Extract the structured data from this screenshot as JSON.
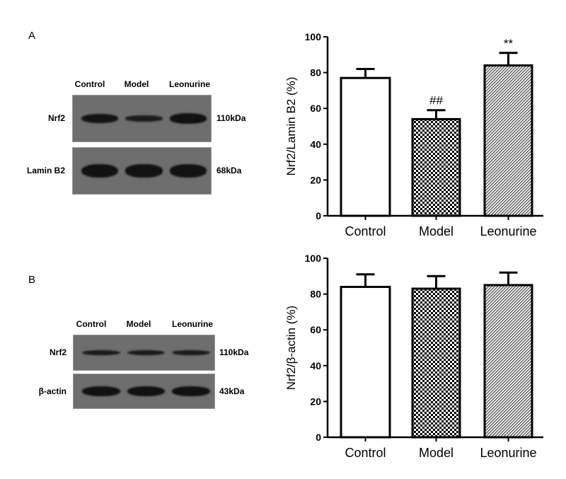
{
  "panels": [
    {
      "letter": "A",
      "lanes": [
        "Control",
        "Model",
        "Leonurine"
      ],
      "blots": [
        {
          "label": "Nrf2",
          "size": "110kDa",
          "band_intensity": [
            0.9,
            0.6,
            1.0
          ]
        },
        {
          "label": "Lamin B2",
          "size": "68kDa",
          "band_intensity": [
            1.0,
            0.95,
            0.95
          ]
        }
      ]
    },
    {
      "letter": "B",
      "lanes": [
        "Control",
        "Model",
        "Leonurine"
      ],
      "blots": [
        {
          "label": "Nrf2",
          "size": "110kDa",
          "band_intensity": [
            0.7,
            0.7,
            0.7
          ]
        },
        {
          "label": "β-actin",
          "size": "43kDa",
          "band_intensity": [
            1.0,
            1.0,
            1.0
          ]
        }
      ]
    }
  ],
  "chart_data": [
    {
      "type": "bar",
      "categories": [
        "Control",
        "Model",
        "Leonurine"
      ],
      "values": [
        77,
        54,
        84
      ],
      "error_upper": [
        82,
        59,
        91
      ],
      "annotations": [
        "",
        "##",
        "**"
      ],
      "fills": [
        "white",
        "checker",
        "hatch"
      ],
      "xlabel": "",
      "ylabel": "Nrf2/Lamin B2 (%)",
      "ylim": [
        0,
        100
      ],
      "yticks": [
        0,
        20,
        40,
        60,
        80,
        100
      ],
      "grid": false
    },
    {
      "type": "bar",
      "categories": [
        "Control",
        "Model",
        "Leonurine"
      ],
      "values": [
        84,
        83,
        85
      ],
      "error_upper": [
        91,
        90,
        92
      ],
      "annotations": [
        "",
        "",
        ""
      ],
      "fills": [
        "white",
        "checker",
        "hatch"
      ],
      "xlabel": "",
      "ylabel": "Nrf2/β-actin (%)",
      "ylim": [
        0,
        100
      ],
      "yticks": [
        0,
        20,
        40,
        60,
        80,
        100
      ],
      "grid": false
    }
  ]
}
